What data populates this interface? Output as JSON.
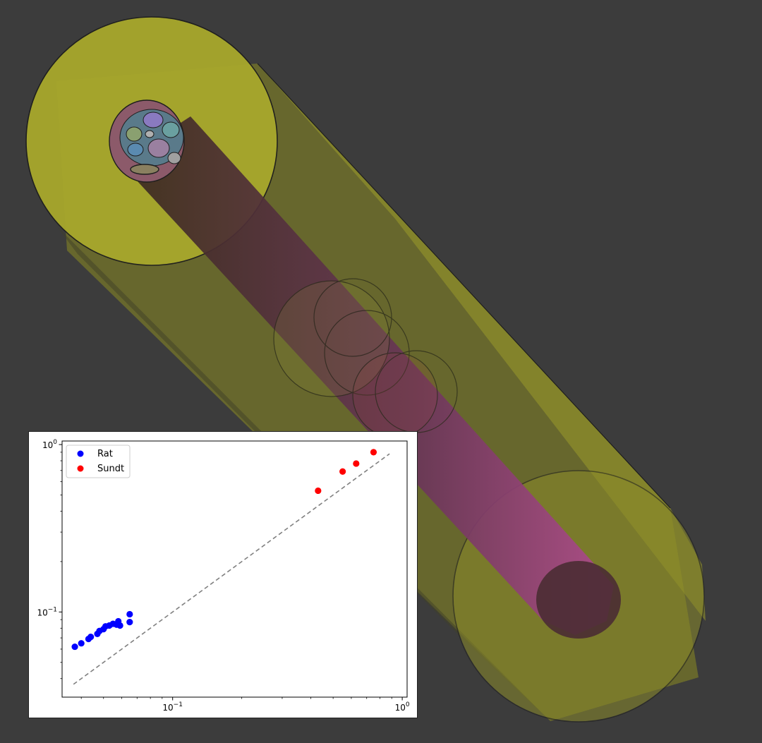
{
  "scene": {
    "outer_cylinder_color": "#b5b52a",
    "inner_rod_color": "#8a3f6d",
    "background": "#3c3c3c"
  },
  "chart_data": {
    "type": "scatter",
    "xscale": "log",
    "yscale": "log",
    "xlim": [
      0.033,
      1.05
    ],
    "ylim": [
      0.031,
      1.05
    ],
    "xticks": [
      {
        "value": 0.1,
        "base": "10",
        "exp": "−1"
      },
      {
        "value": 1,
        "base": "10",
        "exp": "0"
      }
    ],
    "yticks": [
      {
        "value": 0.1,
        "base": "10",
        "exp": "−1"
      },
      {
        "value": 1,
        "base": "10",
        "exp": "0"
      }
    ],
    "legend_position": "upper-left",
    "series": [
      {
        "name": "Rat",
        "color": "#0000ff",
        "x": [
          0.0375,
          0.04,
          0.043,
          0.044,
          0.047,
          0.048,
          0.05,
          0.051,
          0.053,
          0.055,
          0.057,
          0.058,
          0.059,
          0.065,
          0.065
        ],
        "y": [
          0.062,
          0.065,
          0.069,
          0.071,
          0.074,
          0.077,
          0.079,
          0.082,
          0.083,
          0.085,
          0.084,
          0.088,
          0.083,
          0.087,
          0.097
        ]
      },
      {
        "name": "Sundt",
        "color": "#ff0000",
        "x": [
          0.43,
          0.55,
          0.63,
          0.75
        ],
        "y": [
          0.53,
          0.69,
          0.77,
          0.9
        ]
      }
    ],
    "reference_line": {
      "x": [
        0.037,
        0.88
      ],
      "y": [
        0.037,
        0.88
      ],
      "color": "#808080",
      "style": "dashed"
    }
  }
}
